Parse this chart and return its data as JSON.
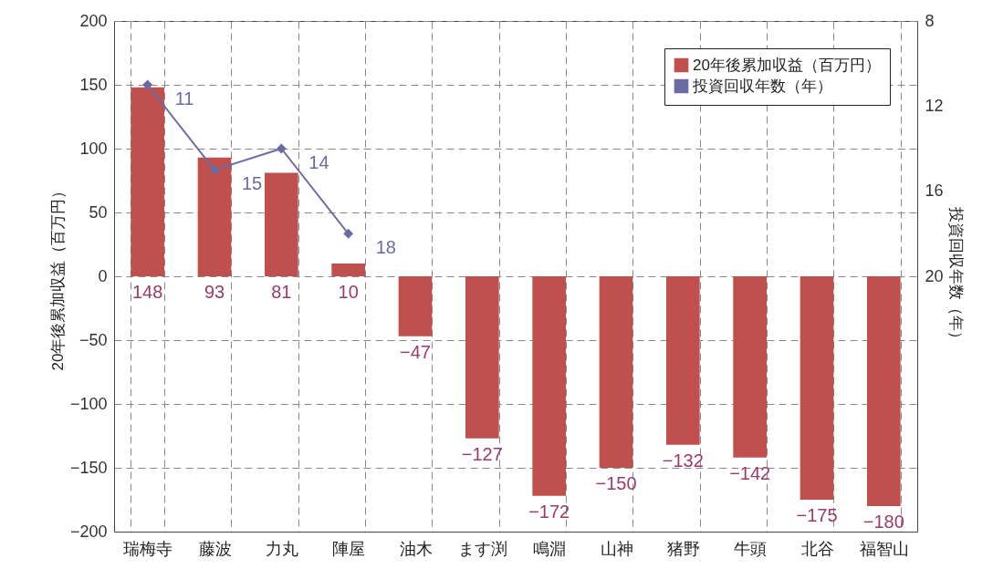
{
  "chart_data": {
    "type": "bar",
    "ylabel": "20年後累加収益（百万円）",
    "y2label": "投資回収年数（年）",
    "categories": [
      "瑞梅寺",
      "藤波",
      "力丸",
      "陣屋",
      "油木",
      "ます渕",
      "鳴淵",
      "山神",
      "猪野",
      "牛頭",
      "北谷",
      "福智山"
    ],
    "series": [
      {
        "name": "20年後累加収益（百万円）",
        "color": "#c0504d",
        "values": [
          148,
          93,
          81,
          10,
          -47,
          -127,
          -172,
          -150,
          -132,
          -142,
          -175,
          -180
        ]
      },
      {
        "name": "投資回収年数（年）",
        "type": "line",
        "axis": "y2",
        "color": "#6b6ba3",
        "marker": "diamond",
        "values": [
          11,
          15,
          14,
          18,
          null,
          null,
          null,
          null,
          null,
          null,
          null,
          null
        ]
      }
    ],
    "ylim": [
      -200,
      200
    ],
    "yticks": [
      -200,
      -150,
      -100,
      -50,
      0,
      50,
      100,
      150,
      200
    ],
    "y2lim": [
      32,
      8
    ],
    "y2ticks": [
      8,
      12,
      16,
      20
    ],
    "grid": true,
    "legend": "top right",
    "data_labels": true
  }
}
